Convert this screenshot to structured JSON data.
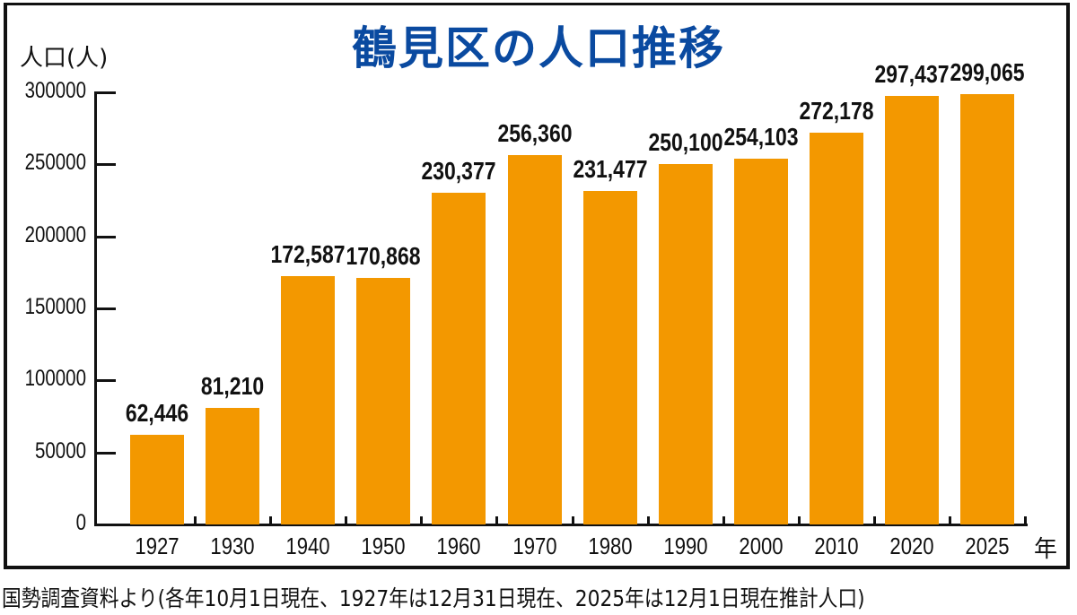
{
  "title": "鶴見区の人口推移",
  "y_axis_label": "人口(人)",
  "x_axis_unit": "年",
  "source_note": "国勢調査資料より(各年10月1日現在、1927年は12月31日現在、2025年は12月1日現在推計人口)",
  "colors": {
    "bar": "#f39800",
    "title": "#0a4aa0",
    "text": "#111111"
  },
  "y_ticks": [
    "300000",
    "250000",
    "200000",
    "150000",
    "100000",
    "50000",
    "0"
  ],
  "chart_data": {
    "type": "bar",
    "title": "鶴見区の人口推移",
    "xlabel": "年",
    "ylabel": "人口(人)",
    "ylim": [
      0,
      300000
    ],
    "grid": false,
    "categories": [
      "1927",
      "1930",
      "1940",
      "1950",
      "1960",
      "1970",
      "1980",
      "1990",
      "2000",
      "2010",
      "2020",
      "2025"
    ],
    "values": [
      62446,
      81210,
      172587,
      170868,
      230377,
      256360,
      231477,
      250100,
      254103,
      272178,
      297437,
      299065
    ],
    "labels": [
      "62,446",
      "81,210",
      "172,587",
      "170,868",
      "230,377",
      "256,360",
      "231,477",
      "250,100",
      "254,103",
      "272,178",
      "297,437",
      "299,065"
    ]
  }
}
